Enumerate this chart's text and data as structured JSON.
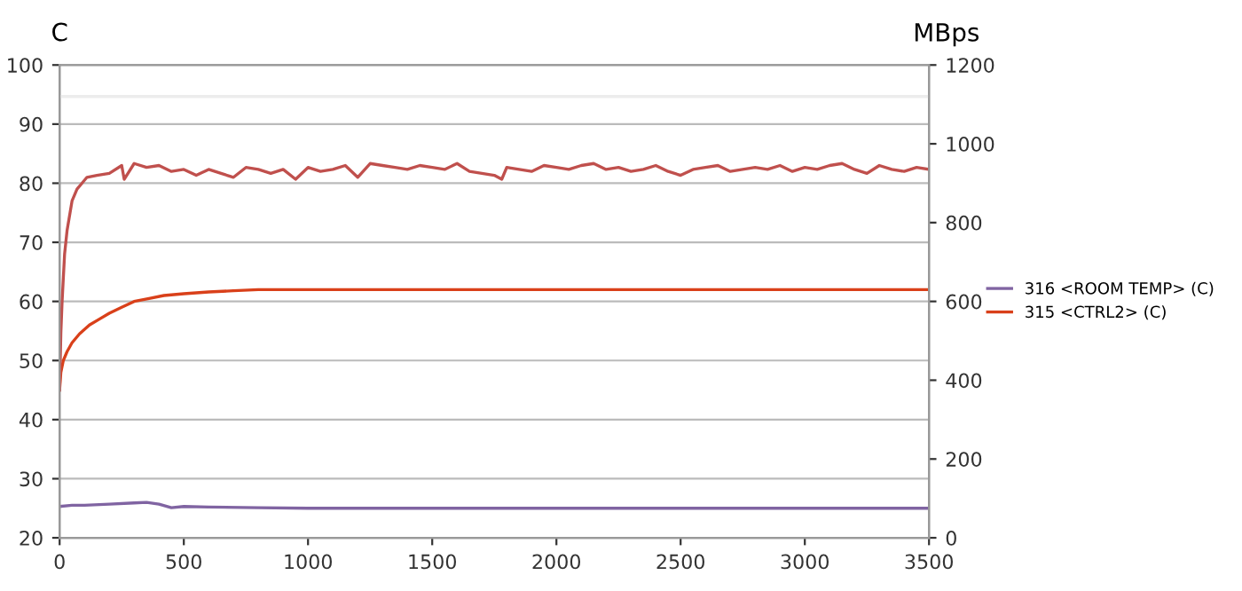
{
  "chart_data": {
    "type": "line",
    "ylabel": "C",
    "y2label": "MBps",
    "xlim": [
      0,
      3500
    ],
    "xticks": [
      0,
      500,
      1000,
      1500,
      2000,
      2500,
      3000,
      3500
    ],
    "ylim": [
      20,
      100
    ],
    "yticks": [
      20,
      30,
      40,
      50,
      60,
      70,
      80,
      90,
      100
    ],
    "y2lim": [
      0,
      1200
    ],
    "y2ticks": [
      0,
      200,
      400,
      600,
      800,
      1000,
      1200
    ],
    "grid": "y",
    "legend": "right",
    "marker": "none",
    "line_style": "solid",
    "series": [
      {
        "name": "316 <ROOM TEMP> (C)",
        "color": "#8064a2",
        "x": [
          0,
          50,
          100,
          200,
          300,
          350,
          400,
          450,
          500,
          600,
          800,
          1000,
          1500,
          2000,
          2500,
          3000,
          3500
        ],
        "values": [
          25.3,
          25.5,
          25.5,
          25.7,
          25.9,
          26.0,
          25.7,
          25.1,
          25.3,
          25.2,
          25.1,
          25.0,
          25.0,
          25.0,
          25.0,
          25.0,
          25.0
        ]
      },
      {
        "name": "315 <CTRL2> (C)",
        "color": "#d9401a",
        "x": [
          0,
          5,
          15,
          30,
          50,
          80,
          120,
          160,
          200,
          250,
          300,
          360,
          420,
          500,
          600,
          700,
          800,
          1000,
          1500,
          2000,
          2500,
          3000,
          3500
        ],
        "values": [
          45,
          48,
          50,
          51.5,
          53,
          54.5,
          56,
          57,
          58,
          59,
          60,
          60.5,
          61,
          61.3,
          61.6,
          61.8,
          62,
          62,
          62,
          62,
          62,
          62,
          62
        ]
      },
      {
        "color": "#c0504d",
        "axis": "y2",
        "x": [
          0,
          5,
          10,
          20,
          30,
          50,
          70,
          90,
          110,
          150,
          200,
          250,
          260,
          300,
          350,
          400,
          450,
          500,
          550,
          600,
          650,
          700,
          750,
          800,
          850,
          900,
          950,
          1000,
          1050,
          1100,
          1150,
          1200,
          1250,
          1300,
          1350,
          1400,
          1450,
          1500,
          1550,
          1600,
          1650,
          1700,
          1750,
          1780,
          1800,
          1850,
          1900,
          1950,
          2000,
          2050,
          2100,
          2150,
          2200,
          2250,
          2300,
          2350,
          2400,
          2450,
          2500,
          2550,
          2600,
          2650,
          2700,
          2750,
          2800,
          2850,
          2900,
          2950,
          3000,
          3050,
          3100,
          3150,
          3200,
          3250,
          3300,
          3350,
          3400,
          3450,
          3500
        ],
        "values": [
          375,
          520,
          600,
          720,
          780,
          855,
          885,
          900,
          915,
          920,
          925,
          945,
          910,
          950,
          940,
          945,
          930,
          935,
          920,
          935,
          925,
          915,
          940,
          935,
          925,
          935,
          910,
          940,
          930,
          935,
          945,
          915,
          950,
          945,
          940,
          935,
          945,
          940,
          935,
          950,
          930,
          925,
          920,
          910,
          940,
          935,
          930,
          945,
          940,
          935,
          945,
          950,
          935,
          940,
          930,
          935,
          945,
          930,
          920,
          935,
          940,
          945,
          930,
          935,
          940,
          935,
          945,
          930,
          940,
          935,
          945,
          950,
          935,
          925,
          945,
          935,
          930,
          940,
          935
        ]
      },
      {
        "color": "#ececec",
        "axis": "y2",
        "x": [
          0,
          500,
          1000,
          1500,
          2000,
          2500,
          3000,
          3500
        ],
        "values": [
          1120,
          1120,
          1120,
          1120,
          1120,
          1120,
          1120,
          1120
        ]
      }
    ]
  }
}
